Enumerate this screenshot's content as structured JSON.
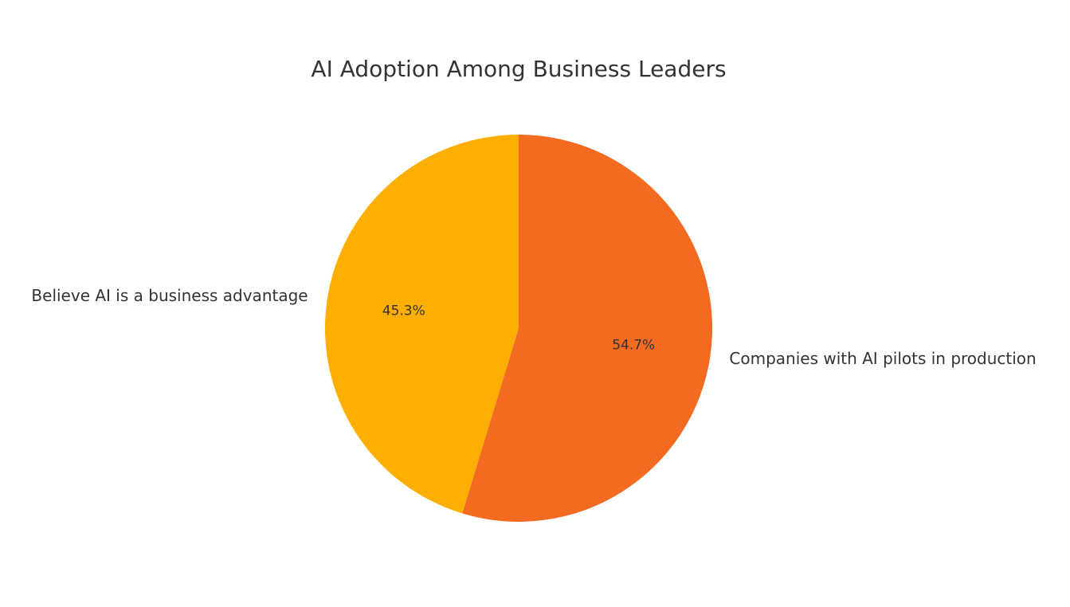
{
  "chart_data": {
    "type": "pie",
    "title": "AI Adoption Among Business Leaders",
    "categories": [
      "Believe AI is a business advantage",
      "Companies with AI pilots in production"
    ],
    "values": [
      45.3,
      54.7
    ],
    "value_labels": [
      "45.3%",
      "54.7%"
    ],
    "colors": [
      "#fdae03",
      "#f36b21"
    ]
  }
}
